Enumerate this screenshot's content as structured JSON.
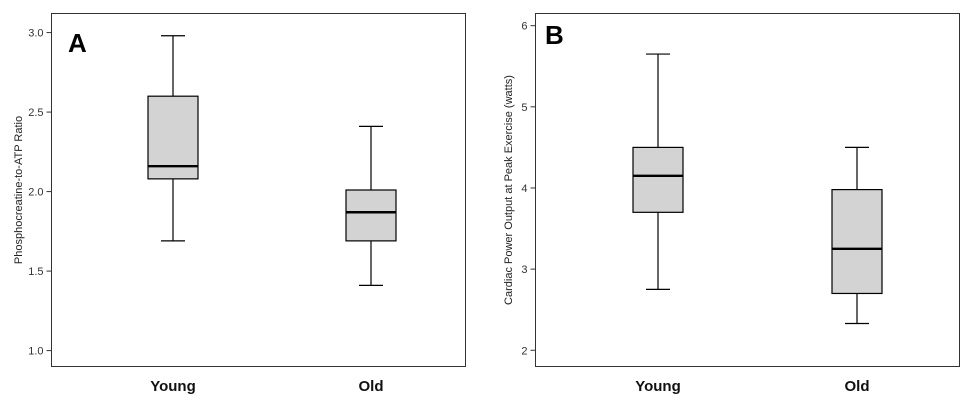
{
  "chart_data": [
    {
      "type": "box",
      "panel_label": "A",
      "ylabel": "Phosphocreatine-to-ATP Ratio",
      "ylim": [
        0.9,
        3.12
      ],
      "yticks": [
        "1.0",
        "1.5",
        "2.0",
        "2.5",
        "3.0"
      ],
      "categories": [
        "Young",
        "Old"
      ],
      "boxes": [
        {
          "category": "Young",
          "min": 1.69,
          "q1": 2.08,
          "median": 2.16,
          "q3": 2.6,
          "max": 2.98
        },
        {
          "category": "Old",
          "min": 1.41,
          "q1": 1.69,
          "median": 1.87,
          "q3": 2.01,
          "max": 2.41
        }
      ],
      "colors": {
        "box_fill": "#d3d3d3",
        "line": "#000000"
      }
    },
    {
      "type": "box",
      "panel_label": "B",
      "ylabel": "Cardiac Power Output at Peak Exercise (watts)",
      "ylim": [
        1.8,
        6.15
      ],
      "yticks": [
        "2",
        "3",
        "4",
        "5",
        "6"
      ],
      "categories": [
        "Young",
        "Old"
      ],
      "boxes": [
        {
          "category": "Young",
          "min": 2.75,
          "q1": 3.7,
          "median": 4.15,
          "q3": 4.5,
          "max": 5.65
        },
        {
          "category": "Old",
          "min": 2.33,
          "q1": 2.7,
          "median": 3.25,
          "q3": 3.98,
          "max": 4.5
        }
      ],
      "colors": {
        "box_fill": "#d3d3d3",
        "line": "#000000"
      }
    }
  ]
}
